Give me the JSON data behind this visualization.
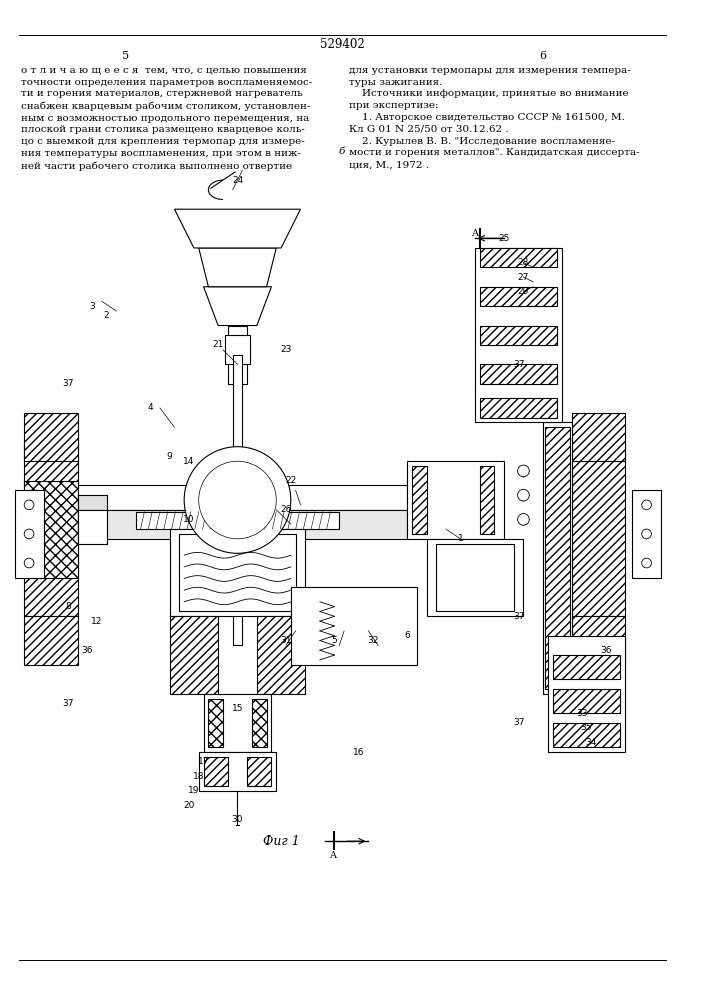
{
  "patent_number": "529402",
  "page_left": "5",
  "page_right": "6",
  "text_left": "о т л и ч а ю щ е е с я  тем, что, с целью повышения\nточности определения параметров воспламеняемос-\nти и горения материалов, стержневой нагреватель\nснабжен кварцевым рабочим столиком, установлен-\nным с возможностью продольного перемещения, на\nплоской грани столика размещено кварцевое коль-\nцо с выемкой для крепления термопар для измере-\nния температуры воспламенения, при этом в ниж-\nней части рабочего столика выполнено отвертие",
  "text_right": "для установки термопары для измерения темпера-\nтуры зажигания.\n    Источники информации, принятые во внимание\nпри экспертизе:\n    1. Авторское свидетельство СССР № 161500, М.\nКл G 01 N 25/50 от 30.12.62 .\n    2. Курылев В. В. \"Исследование воспламеняе-\nмости и горения металлов\". Кандидатская диссерта-\nция, М., 1972 .",
  "fig_label": "Фиг 1",
  "arrow_label_top": "A",
  "arrow_label_bottom": "A",
  "background_color": "#ffffff",
  "text_color": "#000000",
  "line_color": "#000000",
  "font_size_text": 7.5,
  "font_size_number": 8.5,
  "font_size_page": 8.0
}
